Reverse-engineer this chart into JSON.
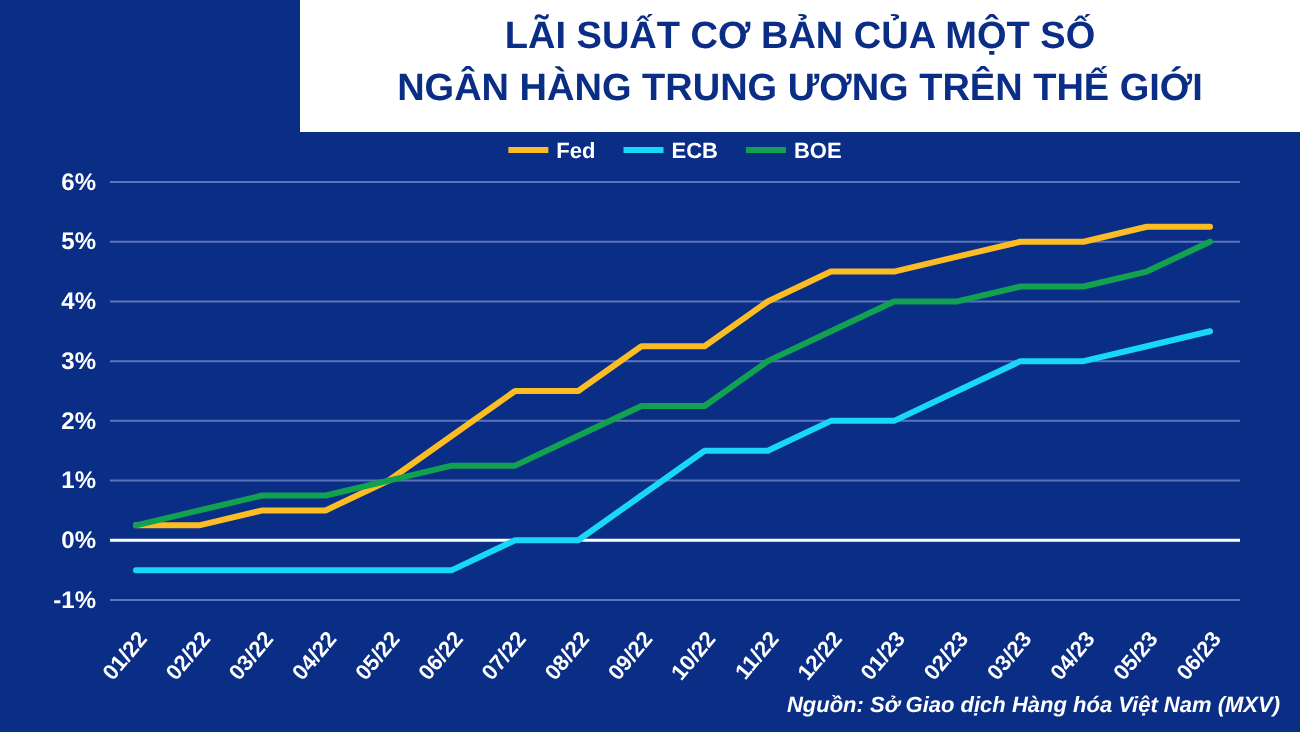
{
  "chart_data": {
    "type": "line",
    "title": "LÃI SUẤT CƠ BẢN CỦA MỘT SỐ\nNGÂN HÀNG TRUNG ƯƠNG TRÊN THẾ GIỚI",
    "categories": [
      "01/22",
      "02/22",
      "03/22",
      "04/22",
      "05/22",
      "06/22",
      "07/22",
      "08/22",
      "09/22",
      "10/22",
      "11/22",
      "12/22",
      "01/23",
      "02/23",
      "03/23",
      "04/23",
      "05/23",
      "06/23"
    ],
    "series": [
      {
        "name": "Fed",
        "color": "#fbbd23",
        "values": [
          0.25,
          0.25,
          0.5,
          0.5,
          1.0,
          1.75,
          2.5,
          2.5,
          3.25,
          3.25,
          4.0,
          4.5,
          4.5,
          4.75,
          5.0,
          5.0,
          5.25,
          5.25
        ]
      },
      {
        "name": "ECB",
        "color": "#19d8f7",
        "values": [
          -0.5,
          -0.5,
          -0.5,
          -0.5,
          -0.5,
          -0.5,
          0,
          0,
          0.75,
          1.5,
          1.5,
          2.0,
          2.0,
          2.5,
          3.0,
          3.0,
          3.25,
          3.5
        ]
      },
      {
        "name": "BOE",
        "color": "#12a150",
        "values": [
          0.25,
          0.5,
          0.75,
          0.75,
          1.0,
          1.25,
          1.25,
          1.75,
          2.25,
          2.25,
          3.0,
          3.5,
          4.0,
          4.0,
          4.25,
          4.25,
          4.5,
          5.0
        ]
      }
    ],
    "ylim": [
      -1,
      6
    ],
    "yticks": [
      {
        "value": -1,
        "label": "-1%"
      },
      {
        "value": 0,
        "label": "0%"
      },
      {
        "value": 1,
        "label": "1%"
      },
      {
        "value": 2,
        "label": "2%"
      },
      {
        "value": 3,
        "label": "3%"
      },
      {
        "value": 4,
        "label": "4%"
      },
      {
        "value": 5,
        "label": "5%"
      },
      {
        "value": 6,
        "label": "6%"
      }
    ],
    "grid": "y",
    "legend": "top",
    "marker": "none",
    "line_style": "solid",
    "ref_lines": [
      {
        "axis": "y",
        "value": 0,
        "color": "#ffffff"
      }
    ],
    "annotations": [
      "Nguồn: Sở Giao dịch Hàng hóa Việt Nam (MXV)"
    ]
  }
}
